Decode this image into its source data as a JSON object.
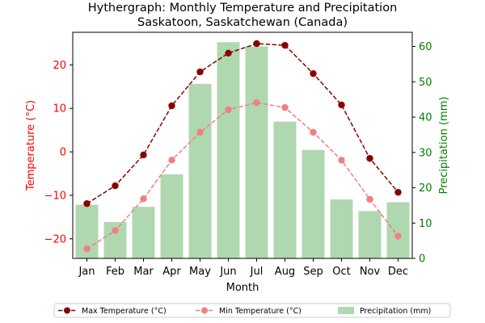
{
  "chart_data": {
    "type": "bar+line",
    "title": "Hythergraph: Monthly Temperature and Precipitation",
    "subtitle": "Saskatoon, Saskatchewan (Canada)",
    "xlabel": "Month",
    "ylabel_left": "Temperature (°C)",
    "ylabel_right": "Precipitation (mm)",
    "categories": [
      "Jan",
      "Feb",
      "Mar",
      "Apr",
      "May",
      "Jun",
      "Jul",
      "Aug",
      "Sep",
      "Oct",
      "Nov",
      "Dec"
    ],
    "ylim_left": [
      -24.5,
      27.5
    ],
    "ylim_right": [
      0,
      64
    ],
    "yticks_left": [
      -20,
      -10,
      0,
      10,
      20
    ],
    "yticks_right": [
      0,
      10,
      20,
      30,
      40,
      50,
      60
    ],
    "grid": false,
    "legend_position": "bottom",
    "series": [
      {
        "name": "Max Temperature (°C)",
        "kind": "line",
        "axis": "left",
        "color": "#8b0000",
        "dash": "dashed",
        "marker": "circle",
        "values": [
          -11.9,
          -7.8,
          -0.7,
          10.6,
          18.4,
          22.7,
          24.9,
          24.5,
          18.0,
          10.8,
          -1.5,
          -9.3
        ]
      },
      {
        "name": "Min Temperature (°C)",
        "kind": "line",
        "axis": "left",
        "color": "#f08080",
        "dash": "dashed",
        "marker": "circle",
        "values": [
          -22.3,
          -18.1,
          -10.8,
          -1.9,
          4.5,
          9.7,
          11.3,
          10.2,
          4.5,
          -1.9,
          -10.9,
          -19.4
        ]
      },
      {
        "name": "Precipitation (mm)",
        "kind": "bar",
        "axis": "right",
        "color": "#b0d8b0",
        "values": [
          15.2,
          10.3,
          14.6,
          23.8,
          49.4,
          61.2,
          60.0,
          38.7,
          30.7,
          16.7,
          13.4,
          15.9
        ]
      }
    ],
    "colors": {
      "left_axis": "#ff0000",
      "right_axis": "#008000",
      "text": "#000000"
    }
  }
}
